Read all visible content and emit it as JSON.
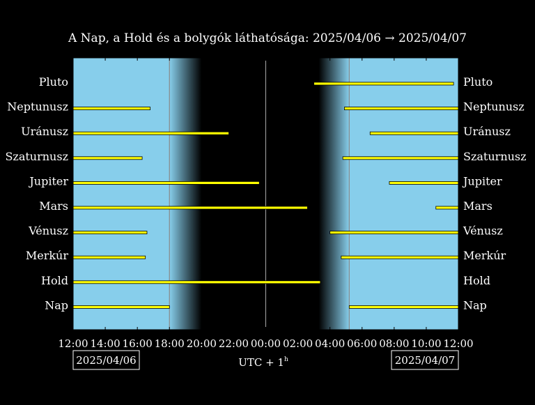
{
  "chart_data": {
    "type": "bar",
    "title": "A Nap, a Hold és a bolygók láthatósága: 2025/04/06 → 2025/04/07",
    "xlabel": "UTC + 1",
    "xlabel_superscript": "h",
    "date_left": "2025/04/06",
    "date_right": "2025/04/07",
    "x_range_hours": [
      12,
      36
    ],
    "x_ticks": [
      {
        "hour": 12,
        "label": "12:00"
      },
      {
        "hour": 14,
        "label": "14:00"
      },
      {
        "hour": 16,
        "label": "16:00"
      },
      {
        "hour": 18,
        "label": "18:00"
      },
      {
        "hour": 20,
        "label": "20:00"
      },
      {
        "hour": 22,
        "label": "22:00"
      },
      {
        "hour": 24,
        "label": "00:00"
      },
      {
        "hour": 26,
        "label": "02:00"
      },
      {
        "hour": 28,
        "label": "04:00"
      },
      {
        "hour": 30,
        "label": "06:00"
      },
      {
        "hour": 32,
        "label": "08:00"
      },
      {
        "hour": 34,
        "label": "10:00"
      },
      {
        "hour": 36,
        "label": "12:00"
      }
    ],
    "sunset_hour": 18.0,
    "dusk_end_hour": 20.0,
    "sunrise_hour": 29.2,
    "dawn_start_hour": 27.3,
    "midnight_hour": 24.0,
    "colors": {
      "day": "#87ceeb",
      "night": "#000000",
      "bar": "#ffff00",
      "line": "#888888"
    },
    "rows": [
      {
        "name": "Pluto",
        "intervals": [
          [
            27.0,
            35.7
          ]
        ]
      },
      {
        "name": "Neptunusz",
        "intervals": [
          [
            12.0,
            16.8
          ],
          [
            28.9,
            36.0
          ]
        ]
      },
      {
        "name": "Uránusz",
        "intervals": [
          [
            12.0,
            21.7
          ],
          [
            30.5,
            36.0
          ]
        ]
      },
      {
        "name": "Szaturnusz",
        "intervals": [
          [
            12.0,
            16.3
          ],
          [
            28.8,
            36.0
          ]
        ]
      },
      {
        "name": "Jupiter",
        "intervals": [
          [
            12.0,
            23.6
          ],
          [
            31.7,
            36.0
          ]
        ]
      },
      {
        "name": "Mars",
        "intervals": [
          [
            12.0,
            26.6
          ],
          [
            34.6,
            36.0
          ]
        ]
      },
      {
        "name": "Vénusz",
        "intervals": [
          [
            12.0,
            16.6
          ],
          [
            28.0,
            36.0
          ]
        ]
      },
      {
        "name": "Merkúr",
        "intervals": [
          [
            12.0,
            16.5
          ],
          [
            28.7,
            36.0
          ]
        ]
      },
      {
        "name": "Hold",
        "intervals": [
          [
            12.0,
            27.4
          ]
        ]
      },
      {
        "name": "Nap",
        "intervals": [
          [
            12.0,
            18.0
          ],
          [
            29.2,
            36.0
          ]
        ]
      }
    ]
  }
}
